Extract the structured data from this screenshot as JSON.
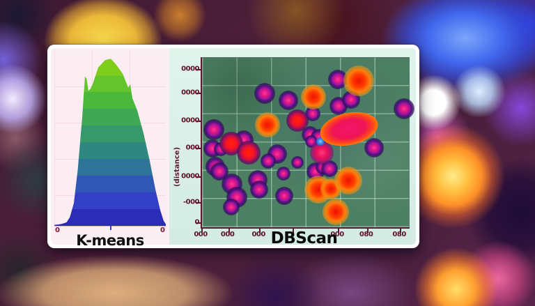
{
  "panel": {
    "description": "clustering comparison card",
    "accent_colors": {
      "card_pink": "#fceff3",
      "card_mint": "#d9efe8",
      "axis_maroon": "#5e1830",
      "tick_text": "#5c1126"
    }
  },
  "chart_data": [
    {
      "type": "area",
      "title": "K-means",
      "xlabel": "",
      "ylabel": "",
      "x_tick_labels": [
        "0",
        "0"
      ],
      "gradient_top_to_bottom": [
        "#7fce1e",
        "#63c52b",
        "#4bb83b",
        "#3fa854",
        "#37986b",
        "#2f887f",
        "#2e7496",
        "#3057b4",
        "#3340c6",
        "#2b2db6"
      ],
      "curve_points_x_heightpct": [
        [
          0,
          0.5
        ],
        [
          6,
          1
        ],
        [
          11,
          2
        ],
        [
          14,
          5
        ],
        [
          17.5,
          13
        ],
        [
          21,
          32
        ],
        [
          25,
          62
        ],
        [
          27.5,
          85.5
        ],
        [
          29,
          84
        ],
        [
          30.6,
          77
        ],
        [
          32.5,
          78.5
        ],
        [
          34.4,
          81
        ],
        [
          39.4,
          90.5
        ],
        [
          45.6,
          94.8
        ],
        [
          50.6,
          95.5
        ],
        [
          55,
          92.5
        ],
        [
          61.3,
          87
        ],
        [
          66.3,
          79
        ],
        [
          68.1,
          81
        ],
        [
          70,
          73
        ],
        [
          74.4,
          66
        ],
        [
          80,
          53
        ],
        [
          85.6,
          37
        ],
        [
          90.6,
          21
        ],
        [
          95,
          9
        ],
        [
          98,
          3
        ],
        [
          100,
          1
        ]
      ]
    },
    {
      "type": "scatter",
      "title": "DBScan",
      "xlabel": "",
      "ylabel": "(distance)",
      "plot_bg": "#4d7f63",
      "y_ticks": [
        {
          "label": "0000",
          "y": 7
        },
        {
          "label": "0000",
          "y": 21
        },
        {
          "label": "0000",
          "y": 37.4
        },
        {
          "label": "000",
          "y": 53.5
        },
        {
          "label": "0000",
          "y": 70.4
        },
        {
          "label": "-000",
          "y": 85.6
        },
        {
          "label": "0",
          "y": 97.5
        }
      ],
      "x_ticks": [
        {
          "label": "000",
          "x": 0
        },
        {
          "label": "000",
          "x": 13
        },
        {
          "label": "000",
          "x": 28
        },
        {
          "label": "",
          "x": 44
        },
        {
          "label": "000",
          "x": 66
        },
        {
          "label": "080",
          "x": 80
        },
        {
          "label": "080",
          "x": 96
        }
      ],
      "points": [
        {
          "kind": "purple",
          "x": 5.7,
          "y": 42.4,
          "d": 30
        },
        {
          "kind": "purple",
          "x": 20.2,
          "y": 48.6,
          "d": 28
        },
        {
          "kind": "purple",
          "x": 5.1,
          "y": 53.5,
          "d": 26
        },
        {
          "kind": "purple",
          "x": 9.0,
          "y": 54.0,
          "d": 20
        },
        {
          "kind": "purple",
          "x": 6.4,
          "y": 64.2,
          "d": 28
        },
        {
          "kind": "purple",
          "x": 8.4,
          "y": 67.0,
          "d": 26
        },
        {
          "kind": "purple",
          "x": 14.5,
          "y": 74.5,
          "d": 30
        },
        {
          "kind": "purple",
          "x": 16.8,
          "y": 82.3,
          "d": 30
        },
        {
          "kind": "purple",
          "x": 14.2,
          "y": 88.0,
          "d": 24
        },
        {
          "kind": "purple",
          "x": 26.9,
          "y": 72.0,
          "d": 28
        },
        {
          "kind": "purple",
          "x": 27.6,
          "y": 77.8,
          "d": 26
        },
        {
          "kind": "purple",
          "x": 36.4,
          "y": 56.8,
          "d": 28
        },
        {
          "kind": "purple",
          "x": 32.0,
          "y": 61.0,
          "d": 22
        },
        {
          "kind": "purple",
          "x": 39.4,
          "y": 68.3,
          "d": 20
        },
        {
          "kind": "purple",
          "x": 39.7,
          "y": 81.5,
          "d": 26
        },
        {
          "kind": "purple",
          "x": 30.3,
          "y": 21.0,
          "d": 30
        },
        {
          "kind": "purple",
          "x": 41.8,
          "y": 25.1,
          "d": 28
        },
        {
          "kind": "purple",
          "x": 53.5,
          "y": 32.9,
          "d": 22
        },
        {
          "kind": "purple",
          "x": 52.2,
          "y": 45.3,
          "d": 24
        },
        {
          "kind": "purple",
          "x": 56.6,
          "y": 46.9,
          "d": 24
        },
        {
          "kind": "purple",
          "x": 53.0,
          "y": 49.5,
          "d": 18
        },
        {
          "kind": "purple",
          "x": 46.1,
          "y": 61.7,
          "d": 18
        },
        {
          "kind": "purple",
          "x": 55.0,
          "y": 67.0,
          "d": 26
        },
        {
          "kind": "purple",
          "x": 58.2,
          "y": 64.5,
          "d": 20
        },
        {
          "kind": "purple",
          "x": 61.6,
          "y": 65.5,
          "d": 24
        },
        {
          "kind": "purple",
          "x": 66.0,
          "y": 28.5,
          "d": 26
        },
        {
          "kind": "purple",
          "x": 72.0,
          "y": 24.5,
          "d": 26
        },
        {
          "kind": "purple",
          "x": 65.7,
          "y": 12.8,
          "d": 28
        },
        {
          "kind": "purple",
          "x": 83.2,
          "y": 53.1,
          "d": 28
        },
        {
          "kind": "purple",
          "x": 97.5,
          "y": 30.0,
          "d": 30
        },
        {
          "kind": "red",
          "x": 14.1,
          "y": 50.6,
          "d": 34
        },
        {
          "kind": "red",
          "x": 22.6,
          "y": 56.0,
          "d": 34
        },
        {
          "kind": "red",
          "x": 46.1,
          "y": 37.0,
          "d": 32
        },
        {
          "kind": "orange",
          "x": 31.6,
          "y": 39.5,
          "d": 36
        },
        {
          "kind": "orange",
          "x": 53.9,
          "y": 23.0,
          "d": 36
        },
        {
          "kind": "orange",
          "x": 75.8,
          "y": 13.6,
          "d": 44
        },
        {
          "kind": "orange",
          "x": 56.2,
          "y": 77.8,
          "d": 40
        },
        {
          "kind": "orange",
          "x": 62.3,
          "y": 77.4,
          "d": 30
        },
        {
          "kind": "orange",
          "x": 70.7,
          "y": 72.4,
          "d": 40
        },
        {
          "kind": "orange",
          "x": 64.6,
          "y": 90.9,
          "d": 38
        },
        {
          "kind": "crimson",
          "x": 57.9,
          "y": 56.0,
          "d": 34
        },
        {
          "kind": "blue",
          "x": 57.2,
          "y": 49.2,
          "d": 13
        },
        {
          "kind": "blob",
          "x": 71.0,
          "y": 42.0,
          "w": 84,
          "h": 46,
          "angle": -12
        }
      ]
    }
  ]
}
